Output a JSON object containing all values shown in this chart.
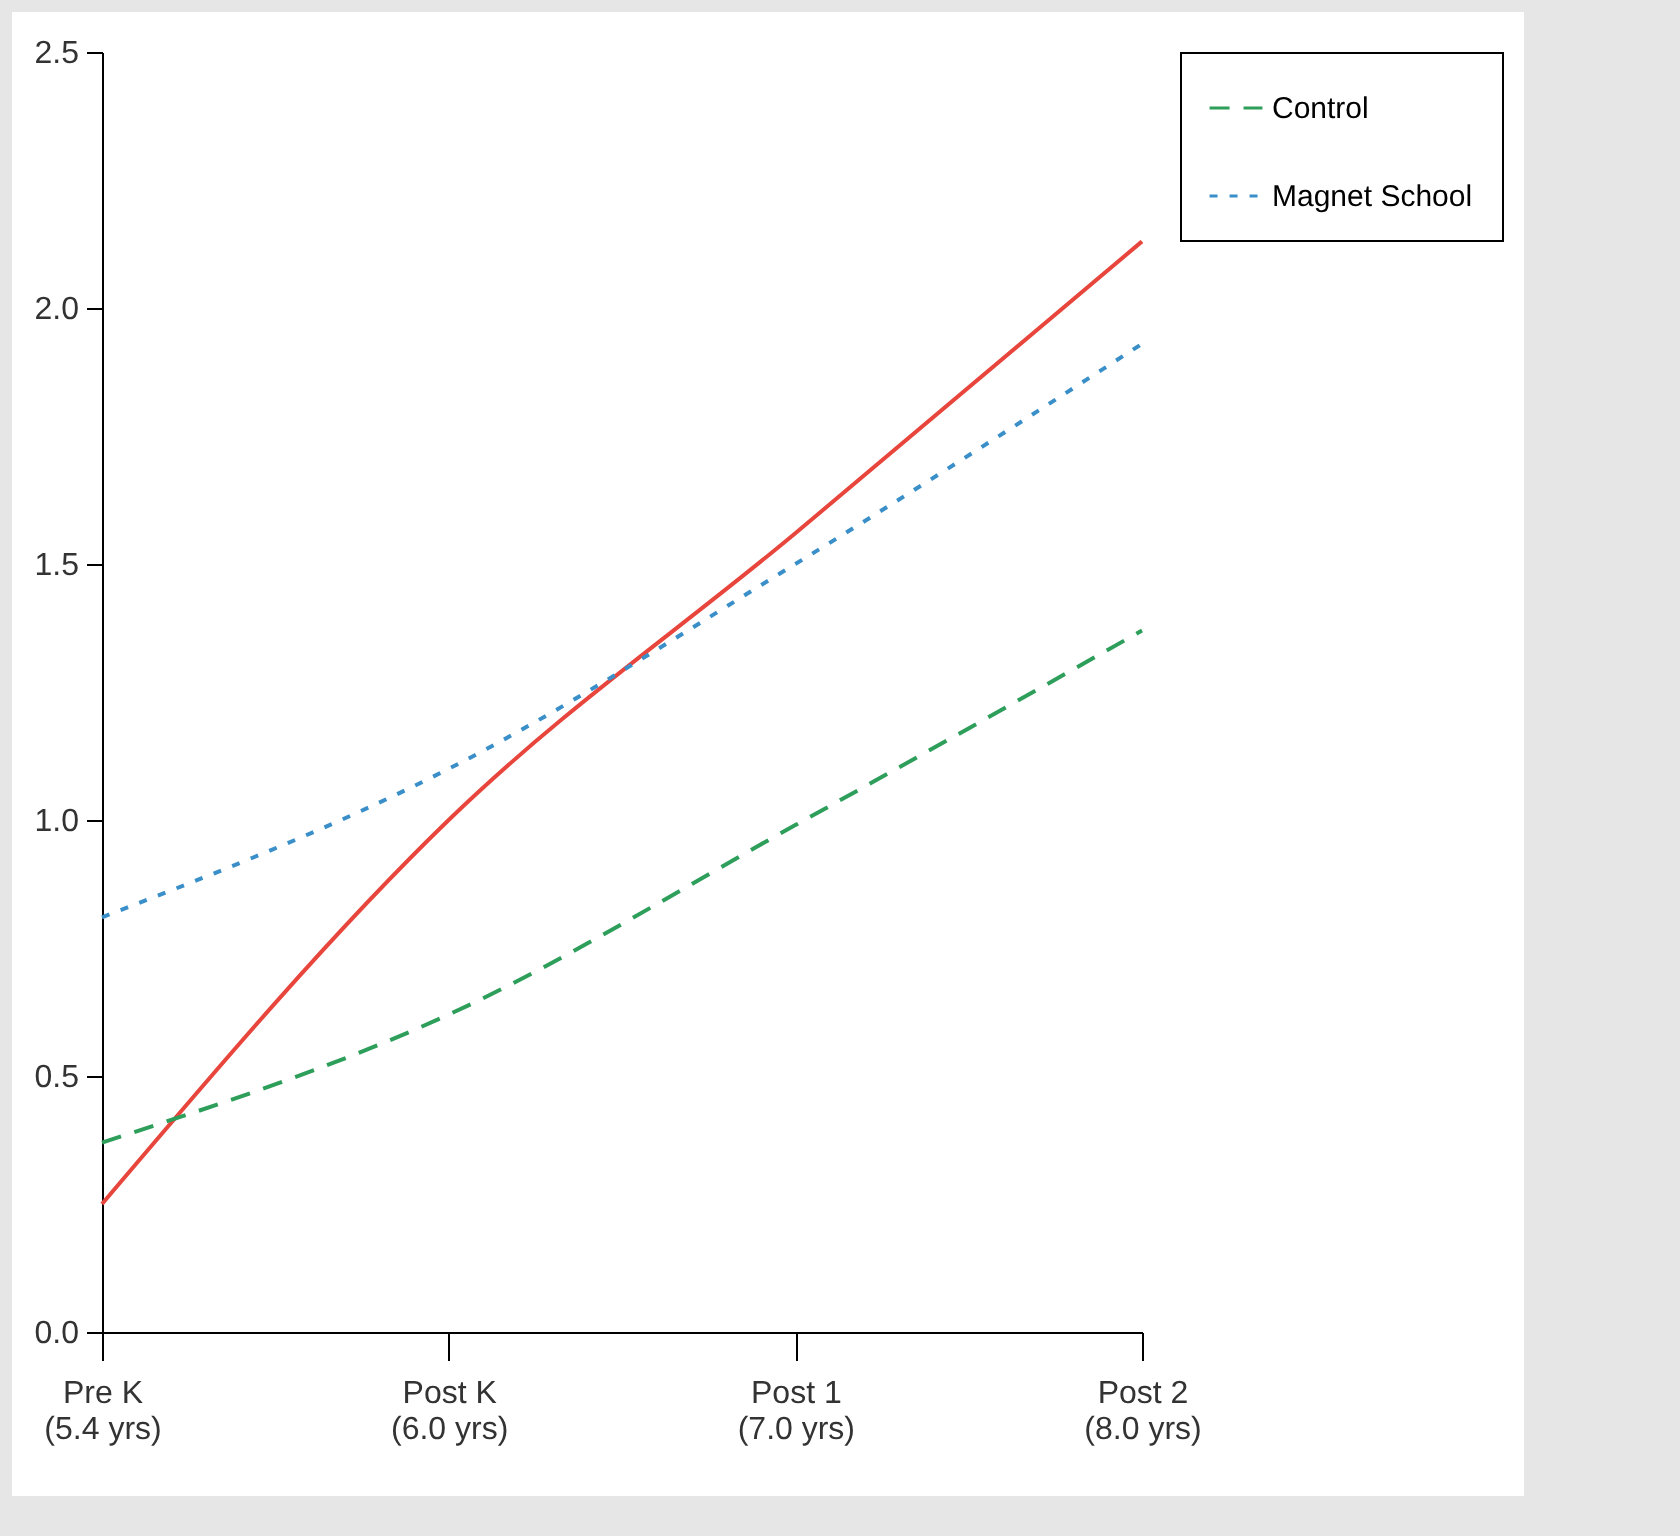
{
  "chart_data": {
    "type": "line",
    "categories": [
      "Pre K\n(5.4 yrs)",
      "Post K\n(6.0 yrs)",
      "Post 1\n(7.0 yrs)",
      "Post 2\n(8.0 yrs)"
    ],
    "series": [
      {
        "color": "#e8453c",
        "line_style": "solid",
        "values": [
          0.25,
          1.0,
          1.56,
          2.13
        ]
      },
      {
        "name": "Control",
        "color": "#2e9e5b",
        "line_style": "dashed",
        "values": [
          0.37,
          0.62,
          0.99,
          1.37
        ]
      },
      {
        "name": "Magnet School",
        "color": "#3a8fc9",
        "line_style": "dotted",
        "values": [
          0.81,
          1.1,
          1.5,
          1.93
        ]
      }
    ],
    "ylim": [
      0,
      2.5
    ],
    "yticks": [
      {
        "value": 0,
        "label": "0.0"
      },
      {
        "value": 0.5,
        "label": "0.5"
      },
      {
        "value": 1,
        "label": "1.0"
      },
      {
        "value": 1.5,
        "label": "1.5"
      },
      {
        "value": 2,
        "label": "2.0"
      },
      {
        "value": 2.5,
        "label": "2.5"
      }
    ],
    "grid": false,
    "legend": "right",
    "marker": "none"
  }
}
